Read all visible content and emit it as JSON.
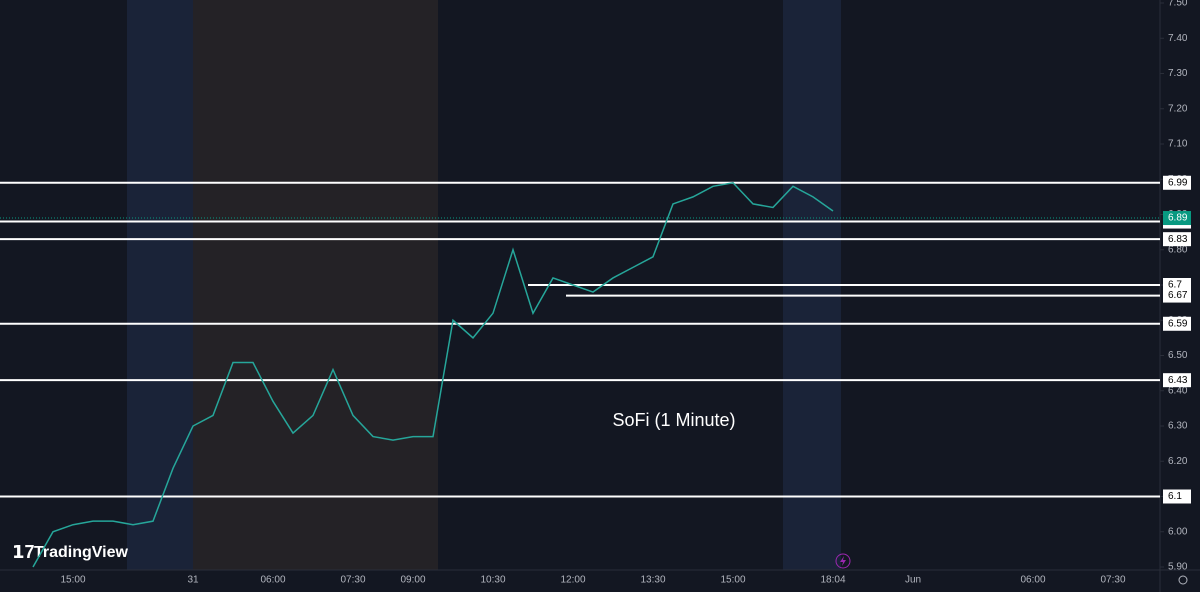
{
  "chart_data": {
    "type": "line",
    "title": "SoFi (1 Minute)",
    "brand": "TradingView",
    "categories": [
      null,
      null,
      "15:00",
      null,
      null,
      null,
      null,
      null,
      "31",
      null,
      null,
      null,
      "06:00",
      null,
      null,
      null,
      "07:30",
      null,
      null,
      "09:00",
      null,
      null,
      null,
      "10:30",
      null,
      null,
      null,
      "12:00",
      null,
      null,
      null,
      "13:30",
      null,
      null,
      null,
      "15:00",
      null,
      null,
      null,
      null,
      "18:04",
      null,
      null,
      null,
      "Jun",
      null,
      null,
      null,
      null,
      null,
      "06:00",
      null,
      null,
      null,
      "07:30",
      null
    ],
    "series": [
      {
        "name": "SOFI",
        "color": "#26a69a",
        "values": [
          5.9,
          6.0,
          6.02,
          6.03,
          6.03,
          6.02,
          6.03,
          6.18,
          6.3,
          6.33,
          6.48,
          6.48,
          6.37,
          6.28,
          6.33,
          6.46,
          6.33,
          6.27,
          6.26,
          6.27,
          6.27,
          6.6,
          6.55,
          6.62,
          6.8,
          6.62,
          6.72,
          6.7,
          6.68,
          6.72,
          6.75,
          6.78,
          6.93,
          6.95,
          6.98,
          6.99,
          6.93,
          6.92,
          6.98,
          6.95,
          6.91,
          null,
          null,
          null,
          null,
          null,
          null,
          null,
          null,
          null,
          null,
          null,
          null,
          null,
          null,
          null
        ]
      }
    ],
    "ylim": [
      5.9,
      7.5
    ],
    "yticks": [
      {
        "value": 5.9,
        "label": "5.90"
      },
      {
        "value": 6.0,
        "label": "6.00"
      },
      {
        "value": 6.1,
        "label": "6.10"
      },
      {
        "value": 6.2,
        "label": "6.20"
      },
      {
        "value": 6.3,
        "label": "6.30"
      },
      {
        "value": 6.4,
        "label": "6.40"
      },
      {
        "value": 6.5,
        "label": "6.50"
      },
      {
        "value": 6.6,
        "label": "6.60"
      },
      {
        "value": 6.7,
        "label": "6.70"
      },
      {
        "value": 6.8,
        "label": "6.80"
      },
      {
        "value": 6.9,
        "label": "6.90"
      },
      {
        "value": 7.0,
        "label": "7.00"
      },
      {
        "value": 7.1,
        "label": "7.10"
      },
      {
        "value": 7.2,
        "label": "7.20"
      },
      {
        "value": 7.3,
        "label": "7.30"
      },
      {
        "value": 7.4,
        "label": "7.40"
      },
      {
        "value": 7.5,
        "label": "7.50"
      }
    ],
    "levels": [
      6.99,
      6.88,
      6.83,
      6.7,
      6.67,
      6.59,
      6.43,
      6.1
    ],
    "last_price": 6.89,
    "last_color": "#089981"
  }
}
